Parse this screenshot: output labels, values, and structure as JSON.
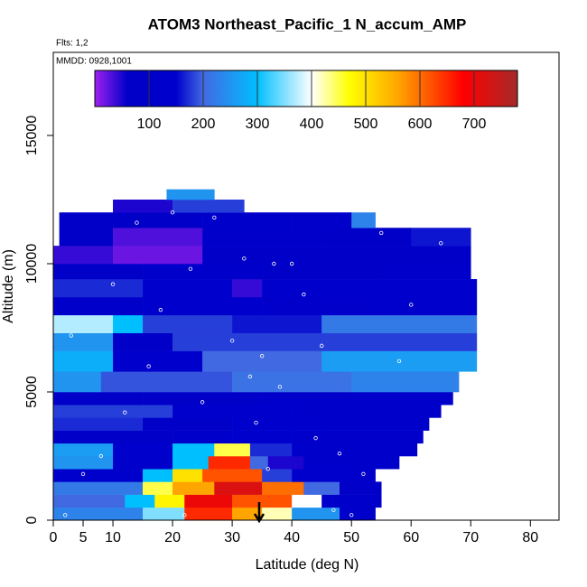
{
  "chart_data": {
    "type": "heatmap",
    "title": "ATOM3 Northeast_Pacific_1 N_accum_AMP",
    "subtitle": "Flts: 1,2",
    "annotation": "MMDD: 0928,1001",
    "xlabel": "Latitude (deg N)",
    "ylabel": "Altitude (m)",
    "xlim": [
      0,
      84.8
    ],
    "xticks": [
      0,
      5,
      10,
      20,
      30,
      40,
      50,
      60,
      70,
      80
    ],
    "ylim": [
      0,
      18240
    ],
    "yticks": [
      0,
      5000,
      10000,
      15000
    ],
    "clim": [
      0,
      780
    ],
    "cticks": [
      100,
      200,
      300,
      400,
      500,
      600,
      700
    ],
    "colorscale": [
      [
        0,
        "#a020f0"
      ],
      [
        60,
        "#0000c8"
      ],
      [
        150,
        "#0000cd"
      ],
      [
        200,
        "#4169e1"
      ],
      [
        300,
        "#00bfff"
      ],
      [
        400,
        "#ffffff"
      ],
      [
        470,
        "#ffff00"
      ],
      [
        560,
        "#ffa500"
      ],
      [
        680,
        "#ff0000"
      ],
      [
        780,
        "#a52a2a"
      ]
    ],
    "rows": [
      {
        "alt": [
          0,
          500
        ],
        "lat": [
          0,
          15,
          22,
          30,
          35,
          40,
          48,
          54
        ],
        "values": [
          230,
          350,
          650,
          560,
          420,
          250,
          120
        ]
      },
      {
        "alt": [
          500,
          1000
        ],
        "lat": [
          0,
          12,
          17,
          22,
          30,
          40,
          45,
          55
        ],
        "values": [
          200,
          300,
          480,
          700,
          620,
          400,
          120
        ]
      },
      {
        "alt": [
          1000,
          1500
        ],
        "lat": [
          0,
          15,
          20,
          27,
          35,
          42,
          48,
          55
        ],
        "values": [
          220,
          450,
          560,
          720,
          600,
          200,
          80
        ]
      },
      {
        "alt": [
          1500,
          2000
        ],
        "lat": [
          0,
          15,
          20,
          25,
          35,
          40,
          50,
          54
        ],
        "values": [
          150,
          300,
          500,
          620,
          180,
          140,
          90
        ]
      },
      {
        "alt": [
          2000,
          2500
        ],
        "lat": [
          0,
          10,
          20,
          26,
          33,
          36,
          42,
          58
        ],
        "values": [
          250,
          120,
          300,
          650,
          200,
          50,
          110
        ]
      },
      {
        "alt": [
          2500,
          3000
        ],
        "lat": [
          0,
          10,
          20,
          27,
          33,
          40,
          61
        ],
        "values": [
          260,
          150,
          300,
          450,
          170,
          120
        ]
      },
      {
        "alt": [
          3000,
          3500
        ],
        "lat": [
          0,
          20,
          30,
          40,
          62
        ],
        "values": [
          60,
          120,
          150,
          100
        ]
      },
      {
        "alt": [
          3500,
          4000
        ],
        "lat": [
          0,
          15,
          30,
          45,
          63
        ],
        "values": [
          170,
          80,
          150,
          120
        ]
      },
      {
        "alt": [
          4000,
          4500
        ],
        "lat": [
          0,
          20,
          40,
          65
        ],
        "values": [
          180,
          150,
          110
        ]
      },
      {
        "alt": [
          4500,
          5000
        ],
        "lat": [
          0,
          15,
          35,
          67
        ],
        "values": [
          80,
          60,
          100
        ]
      },
      {
        "alt": [
          5000,
          5800
        ],
        "lat": [
          0,
          8,
          30,
          50,
          68
        ],
        "values": [
          250,
          190,
          210,
          230
        ]
      },
      {
        "alt": [
          5800,
          6600
        ],
        "lat": [
          0,
          10,
          25,
          45,
          71
        ],
        "values": [
          280,
          150,
          200,
          260
        ]
      },
      {
        "alt": [
          6600,
          7300
        ],
        "lat": [
          0,
          10,
          20,
          35,
          71
        ],
        "values": [
          250,
          60,
          180,
          180
        ]
      },
      {
        "alt": [
          7300,
          8000
        ],
        "lat": [
          0,
          10,
          15,
          30,
          45,
          71
        ],
        "values": [
          370,
          300,
          180,
          160,
          220
        ]
      },
      {
        "alt": [
          8000,
          8700
        ],
        "lat": [
          0,
          15,
          35,
          55,
          71
        ],
        "values": [
          120,
          140,
          100,
          130
        ]
      },
      {
        "alt": [
          8700,
          9400
        ],
        "lat": [
          0,
          15,
          30,
          35,
          71
        ],
        "values": [
          170,
          150,
          40,
          140
        ]
      },
      {
        "alt": [
          9400,
          10000
        ],
        "lat": [
          0,
          15,
          35,
          55,
          70
        ],
        "values": [
          80,
          110,
          60,
          90
        ]
      },
      {
        "alt": [
          10000,
          10700
        ],
        "lat": [
          0,
          10,
          25,
          45,
          70
        ],
        "values": [
          40,
          20,
          80,
          70
        ]
      },
      {
        "alt": [
          10700,
          11400
        ],
        "lat": [
          1,
          10,
          25,
          45,
          60,
          70
        ],
        "values": [
          60,
          30,
          90,
          70,
          160
        ]
      },
      {
        "alt": [
          11400,
          12000
        ],
        "lat": [
          1,
          10,
          25,
          40,
          50,
          54
        ],
        "values": [
          80,
          60,
          120,
          100,
          230
        ]
      },
      {
        "alt": [
          12000,
          12500
        ],
        "lat": [
          10,
          20,
          32
        ],
        "values": [
          50,
          180
        ]
      },
      {
        "alt": [
          12500,
          12900
        ],
        "lat": [
          19,
          27
        ],
        "values": [
          250
        ]
      }
    ],
    "points": {
      "x": [
        2,
        5,
        8,
        12,
        16,
        18,
        22,
        23,
        27,
        30,
        32,
        34,
        35,
        38,
        40,
        42,
        45,
        48,
        50,
        52,
        3,
        14,
        20,
        25,
        33,
        37,
        44,
        55,
        60,
        65,
        28,
        36,
        10,
        47,
        58
      ],
      "y": [
        200,
        1800,
        2500,
        4200,
        6000,
        8200,
        200,
        9800,
        11800,
        7000,
        10200,
        3800,
        6400,
        5200,
        10000,
        8800,
        6800,
        2600,
        200,
        1800,
        7200,
        11600,
        12000,
        4600,
        5600,
        10000,
        3200,
        11200,
        8400,
        10800,
        12600,
        2000,
        9200,
        400,
        6200
      ]
    }
  }
}
